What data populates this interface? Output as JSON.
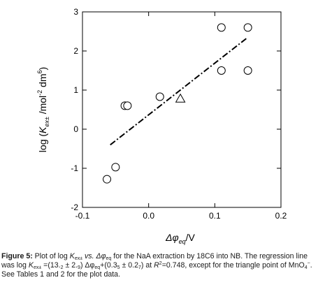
{
  "chart_data": {
    "type": "scatter",
    "xlabel": "Δφeq/V",
    "ylabel": "log (Kex± /mol⁻² dm⁶)",
    "xlim": [
      -0.1,
      0.2
    ],
    "ylim": [
      -2,
      3
    ],
    "x_ticks": [
      -0.1,
      0.0,
      0.1,
      0.2
    ],
    "x_tick_labels": [
      "-0.1",
      "0.0",
      "0.1",
      "0.2"
    ],
    "y_ticks": [
      -2,
      -1,
      0,
      1,
      2,
      3
    ],
    "y_tick_labels": [
      "-2",
      "-1",
      "0",
      "1",
      "2",
      "3"
    ],
    "grid": false,
    "series": [
      {
        "marker": "circle",
        "points": [
          {
            "x": -0.063,
            "y": -1.28
          },
          {
            "x": -0.05,
            "y": -0.97
          },
          {
            "x": -0.036,
            "y": 0.6
          },
          {
            "x": -0.032,
            "y": 0.6
          },
          {
            "x": 0.017,
            "y": 0.83
          },
          {
            "x": 0.11,
            "y": 2.6
          },
          {
            "x": 0.15,
            "y": 2.6
          },
          {
            "x": 0.11,
            "y": 1.5
          },
          {
            "x": 0.15,
            "y": 1.5
          }
        ]
      },
      {
        "marker": "triangle",
        "points": [
          {
            "x": 0.048,
            "y": 0.78
          }
        ]
      }
    ],
    "regression_line": {
      "style": "dash-dot",
      "x_start": -0.058,
      "y_start": -0.4,
      "x_end": 0.15,
      "y_end": 2.35
    }
  },
  "caption": {
    "figure_label": "Figure 5:",
    "line1_text": " Plot of log ",
    "k_symbol": "K",
    "k_sub": "ex±",
    "vs_text": " vs.",
    "delta_text": " Δφ",
    "eq_sub": "eq",
    "rest1": " for the NaA extraction by 18C6 into NB. The regression line was log ",
    "k2_symbol": "K",
    "k2_sub": "ex±",
    "reg_a": " =(13.",
    "reg_a_sub": "2",
    "reg_b": " ± 2.",
    "reg_b_sub": "9",
    "reg_c": ") Δφ",
    "reg_c_sub": "eq",
    "reg_d": "+(0.3",
    "reg_d_sub": "5",
    "reg_e": " ± 0.2",
    "reg_e_sub": "7",
    "reg_f": ") at ",
    "r_symbol": "R",
    "r_sup": "2",
    "reg_g": "=0.748, except for the triangle point of MnO",
    "mno_sub": "4",
    "mno_sup": "−",
    "reg_h": ". See Tables 1 and 2 for the plot data."
  }
}
